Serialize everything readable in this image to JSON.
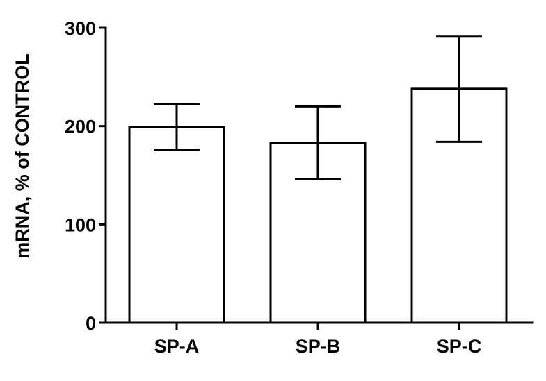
{
  "chart_data": {
    "type": "bar",
    "title": "",
    "xlabel": "",
    "ylabel": "mRNA, % of CONTROL",
    "categories": [
      "SP-A",
      "SP-B",
      "SP-C"
    ],
    "values": [
      199,
      183,
      238
    ],
    "error_upper": [
      222,
      220,
      291
    ],
    "error_lower": [
      176,
      146,
      184
    ],
    "ylim": [
      0,
      300
    ],
    "yticks": [
      0,
      100,
      200,
      300
    ],
    "ytick_labels": [
      "0",
      "100",
      "200",
      "300"
    ],
    "grid": false,
    "legend": "none",
    "colors": {
      "bar_fill": "#ffffff",
      "bar_stroke": "#000000",
      "axis": "#000000"
    }
  }
}
